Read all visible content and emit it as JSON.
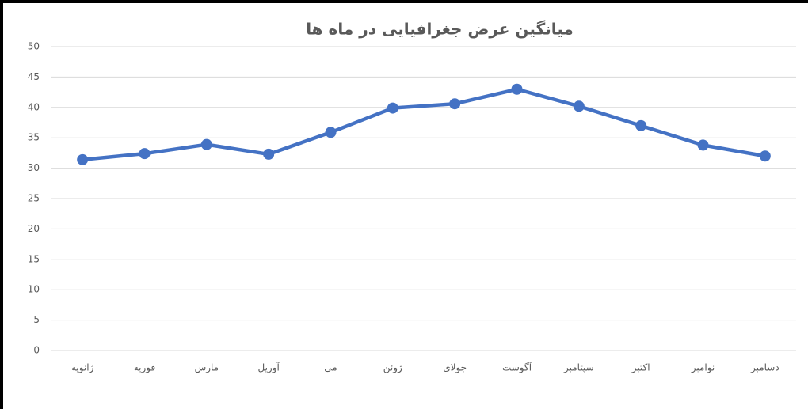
{
  "chart_data": {
    "type": "line",
    "title": "میانگین عرض جغرافیایی در ماه ها",
    "categories": [
      "ژانویه",
      "فوریه",
      "مارس",
      "آوریل",
      "می",
      "ژوئن",
      "جولای",
      "آگوست",
      "سپتامبر",
      "اکتبر",
      "نوامبر",
      "دسامبر"
    ],
    "values": [
      31.4,
      32.4,
      33.9,
      32.3,
      35.9,
      39.9,
      40.6,
      43.0,
      40.2,
      37.0,
      33.8,
      32.0
    ],
    "color": "#4472c4",
    "ylim": [
      0,
      50
    ],
    "yticks": [
      0,
      5,
      10,
      15,
      20,
      25,
      30,
      35,
      40,
      45,
      50
    ],
    "grid": true
  }
}
